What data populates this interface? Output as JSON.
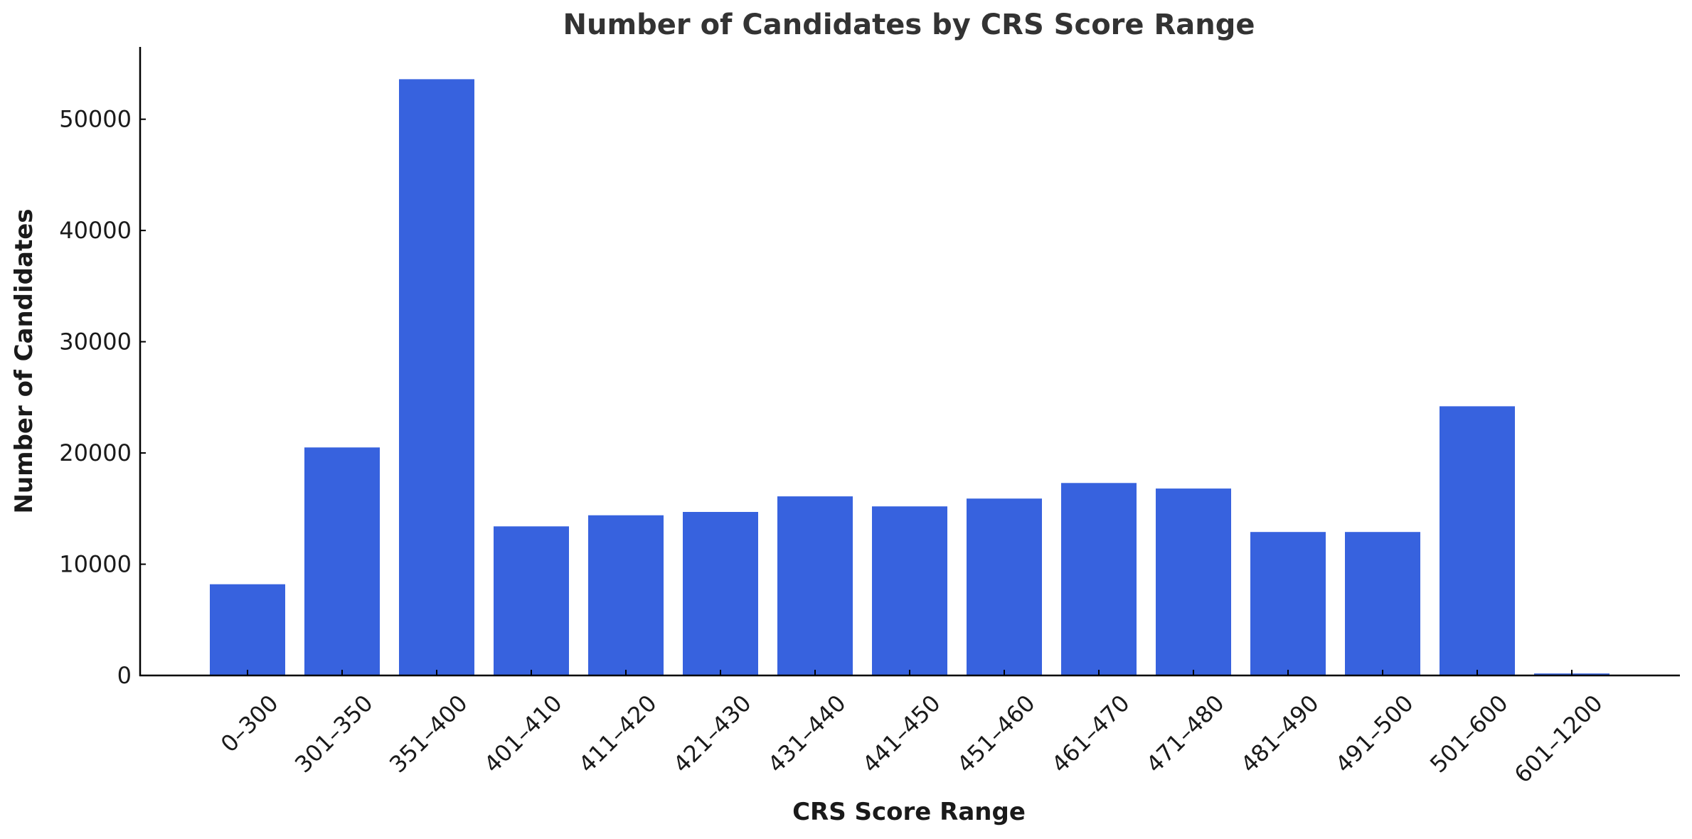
{
  "chart_data": {
    "type": "bar",
    "title": "Number of Candidates by CRS Score Range",
    "xlabel": "CRS Score Range",
    "ylabel": "Number of Candidates",
    "categories": [
      "0–300",
      "301–350",
      "351–400",
      "401–410",
      "411–420",
      "421–430",
      "431–440",
      "441–450",
      "451–460",
      "461–470",
      "471–480",
      "481–490",
      "491–500",
      "501–600",
      "601–1200"
    ],
    "values": [
      8200,
      20500,
      53600,
      13400,
      14400,
      14700,
      16100,
      15200,
      15900,
      17300,
      16800,
      12900,
      12900,
      24200,
      180
    ],
    "ylim": [
      0,
      56500
    ],
    "yticks": [
      0,
      10000,
      20000,
      30000,
      40000,
      50000
    ],
    "bar_color": "#3762de",
    "grid": false,
    "legend": "none"
  }
}
